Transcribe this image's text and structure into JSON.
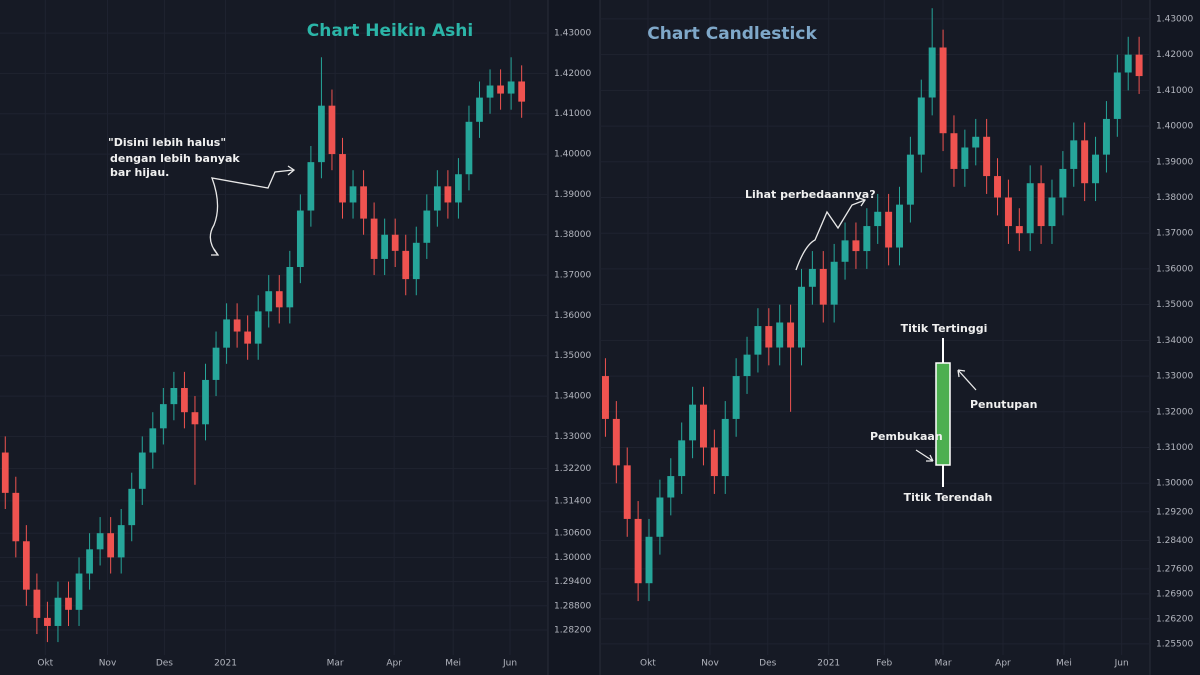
{
  "chart_data": [
    {
      "type": "candlestick",
      "title": "Chart Heikin Ashi",
      "annotations": [
        "\"Disini lebih halus\"",
        "dengan lebih banyak",
        "bar hijau."
      ],
      "up_color": "#26a69a",
      "down_color": "#ef5350",
      "grid": true,
      "xlim": [
        0,
        52
      ],
      "xticks": [
        {
          "value": 4.3,
          "label": "Okt"
        },
        {
          "value": 10.2,
          "label": "Nov"
        },
        {
          "value": 15.6,
          "label": "Des"
        },
        {
          "value": 21.4,
          "label": "2021"
        },
        {
          "value": 31.8,
          "label": "Mar"
        },
        {
          "value": 37.4,
          "label": "Apr"
        },
        {
          "value": 43,
          "label": "Mei"
        },
        {
          "value": 48.4,
          "label": "Jun"
        }
      ],
      "ylim": [
        1.2758,
        1.4382
      ],
      "yticks": [
        {
          "value": 1.43,
          "label": "1.43000"
        },
        {
          "value": 1.42,
          "label": "1.42000"
        },
        {
          "value": 1.41,
          "label": "1.41000"
        },
        {
          "value": 1.4,
          "label": "1.40000"
        },
        {
          "value": 1.39,
          "label": "1.39000"
        },
        {
          "value": 1.38,
          "label": "1.38000"
        },
        {
          "value": 1.37,
          "label": "1.37000"
        },
        {
          "value": 1.36,
          "label": "1.36000"
        },
        {
          "value": 1.35,
          "label": "1.35000"
        },
        {
          "value": 1.34,
          "label": "1.34000"
        },
        {
          "value": 1.33,
          "label": "1.33000"
        },
        {
          "value": 1.322,
          "label": "1.32200"
        },
        {
          "value": 1.314,
          "label": "1.31400"
        },
        {
          "value": 1.306,
          "label": "1.30600"
        },
        {
          "value": 1.3,
          "label": "1.30000"
        },
        {
          "value": 1.294,
          "label": "1.29400"
        },
        {
          "value": 1.288,
          "label": "1.28800"
        },
        {
          "value": 1.282,
          "label": "1.28200"
        }
      ],
      "open": [
        1.326,
        1.316,
        1.304,
        1.292,
        1.285,
        1.283,
        1.29,
        1.287,
        1.296,
        1.302,
        1.306,
        1.3,
        1.308,
        1.317,
        1.326,
        1.332,
        1.338,
        1.342,
        1.336,
        1.333,
        1.344,
        1.352,
        1.359,
        1.356,
        1.353,
        1.361,
        1.366,
        1.362,
        1.372,
        1.386,
        1.398,
        1.412,
        1.4,
        1.388,
        1.392,
        1.384,
        1.374,
        1.38,
        1.376,
        1.369,
        1.378,
        1.386,
        1.392,
        1.388,
        1.395,
        1.408,
        1.414,
        1.417,
        1.415,
        1.418
      ],
      "high": [
        1.33,
        1.32,
        1.308,
        1.296,
        1.289,
        1.294,
        1.294,
        1.3,
        1.306,
        1.31,
        1.31,
        1.312,
        1.321,
        1.33,
        1.336,
        1.342,
        1.346,
        1.346,
        1.34,
        1.348,
        1.356,
        1.363,
        1.363,
        1.36,
        1.365,
        1.37,
        1.37,
        1.376,
        1.39,
        1.402,
        1.424,
        1.416,
        1.404,
        1.396,
        1.396,
        1.388,
        1.384,
        1.384,
        1.38,
        1.382,
        1.39,
        1.396,
        1.396,
        1.399,
        1.412,
        1.418,
        1.421,
        1.421,
        1.424,
        1.422
      ],
      "low": [
        1.312,
        1.3,
        1.288,
        1.281,
        1.279,
        1.279,
        1.283,
        1.283,
        1.292,
        1.298,
        1.296,
        1.296,
        1.304,
        1.313,
        1.322,
        1.328,
        1.334,
        1.332,
        1.318,
        1.329,
        1.34,
        1.348,
        1.352,
        1.349,
        1.349,
        1.357,
        1.358,
        1.358,
        1.368,
        1.382,
        1.394,
        1.396,
        1.384,
        1.384,
        1.38,
        1.37,
        1.37,
        1.372,
        1.365,
        1.365,
        1.374,
        1.382,
        1.384,
        1.384,
        1.391,
        1.404,
        1.41,
        1.411,
        1.411,
        1.409
      ],
      "close": [
        1.316,
        1.304,
        1.292,
        1.285,
        1.283,
        1.29,
        1.287,
        1.296,
        1.302,
        1.306,
        1.3,
        1.308,
        1.317,
        1.326,
        1.332,
        1.338,
        1.342,
        1.336,
        1.333,
        1.344,
        1.352,
        1.359,
        1.356,
        1.353,
        1.361,
        1.366,
        1.362,
        1.372,
        1.386,
        1.398,
        1.412,
        1.4,
        1.388,
        1.392,
        1.384,
        1.374,
        1.38,
        1.376,
        1.369,
        1.378,
        1.386,
        1.392,
        1.388,
        1.395,
        1.408,
        1.414,
        1.417,
        1.415,
        1.418,
        1.413
      ]
    },
    {
      "type": "candlestick",
      "title": "Chart Candlestick",
      "annotations": [
        "Lihat perbedaannya?",
        "Titik Tertinggi",
        "Penutupan",
        "Pembukaan",
        "Titik Terendah"
      ],
      "up_color": "#26a69a",
      "down_color": "#ef5350",
      "grid": true,
      "xlim": [
        0,
        50.5
      ],
      "xticks": [
        {
          "value": 4.4,
          "label": "Okt"
        },
        {
          "value": 10.1,
          "label": "Nov"
        },
        {
          "value": 15.4,
          "label": "Des"
        },
        {
          "value": 21,
          "label": "2021"
        },
        {
          "value": 26.1,
          "label": "Feb"
        },
        {
          "value": 31.5,
          "label": "Mar"
        },
        {
          "value": 37,
          "label": "Apr"
        },
        {
          "value": 42.6,
          "label": "Mei"
        },
        {
          "value": 47.9,
          "label": "Jun"
        }
      ],
      "ylim": [
        1.2519,
        1.4353
      ],
      "yticks": [
        {
          "value": 1.43,
          "label": "1.43000"
        },
        {
          "value": 1.42,
          "label": "1.42000"
        },
        {
          "value": 1.41,
          "label": "1.41000"
        },
        {
          "value": 1.4,
          "label": "1.40000"
        },
        {
          "value": 1.39,
          "label": "1.39000"
        },
        {
          "value": 1.38,
          "label": "1.38000"
        },
        {
          "value": 1.37,
          "label": "1.37000"
        },
        {
          "value": 1.36,
          "label": "1.36000"
        },
        {
          "value": 1.35,
          "label": "1.35000"
        },
        {
          "value": 1.34,
          "label": "1.34000"
        },
        {
          "value": 1.33,
          "label": "1.33000"
        },
        {
          "value": 1.32,
          "label": "1.32000"
        },
        {
          "value": 1.31,
          "label": "1.31000"
        },
        {
          "value": 1.3,
          "label": "1.30000"
        },
        {
          "value": 1.292,
          "label": "1.29200"
        },
        {
          "value": 1.284,
          "label": "1.28400"
        },
        {
          "value": 1.276,
          "label": "1.27600"
        },
        {
          "value": 1.269,
          "label": "1.26900"
        },
        {
          "value": 1.262,
          "label": "1.26200"
        },
        {
          "value": 1.255,
          "label": "1.25500"
        }
      ],
      "open": [
        1.33,
        1.318,
        1.305,
        1.29,
        1.272,
        1.285,
        1.296,
        1.302,
        1.312,
        1.322,
        1.31,
        1.302,
        1.318,
        1.33,
        1.336,
        1.344,
        1.338,
        1.345,
        1.338,
        1.355,
        1.36,
        1.35,
        1.362,
        1.368,
        1.365,
        1.372,
        1.376,
        1.366,
        1.378,
        1.392,
        1.408,
        1.422,
        1.398,
        1.388,
        1.394,
        1.397,
        1.386,
        1.38,
        1.372,
        1.37,
        1.384,
        1.372,
        1.38,
        1.388,
        1.396,
        1.384,
        1.392,
        1.402,
        1.415,
        1.42
      ],
      "high": [
        1.335,
        1.323,
        1.31,
        1.295,
        1.29,
        1.301,
        1.307,
        1.317,
        1.327,
        1.327,
        1.315,
        1.323,
        1.335,
        1.341,
        1.349,
        1.349,
        1.35,
        1.35,
        1.36,
        1.365,
        1.365,
        1.367,
        1.373,
        1.373,
        1.377,
        1.381,
        1.381,
        1.383,
        1.397,
        1.413,
        1.433,
        1.427,
        1.403,
        1.399,
        1.402,
        1.402,
        1.391,
        1.385,
        1.377,
        1.389,
        1.389,
        1.385,
        1.393,
        1.401,
        1.401,
        1.397,
        1.407,
        1.42,
        1.425,
        1.425
      ],
      "low": [
        1.313,
        1.3,
        1.285,
        1.267,
        1.267,
        1.28,
        1.291,
        1.297,
        1.307,
        1.305,
        1.297,
        1.297,
        1.313,
        1.325,
        1.331,
        1.333,
        1.333,
        1.32,
        1.333,
        1.35,
        1.345,
        1.345,
        1.357,
        1.36,
        1.36,
        1.367,
        1.361,
        1.361,
        1.373,
        1.387,
        1.403,
        1.393,
        1.383,
        1.383,
        1.389,
        1.381,
        1.375,
        1.367,
        1.365,
        1.365,
        1.367,
        1.367,
        1.375,
        1.383,
        1.379,
        1.379,
        1.387,
        1.397,
        1.41,
        1.409
      ],
      "close": [
        1.318,
        1.305,
        1.29,
        1.272,
        1.285,
        1.296,
        1.302,
        1.312,
        1.322,
        1.31,
        1.302,
        1.318,
        1.33,
        1.336,
        1.344,
        1.338,
        1.345,
        1.338,
        1.355,
        1.36,
        1.35,
        1.362,
        1.368,
        1.365,
        1.372,
        1.376,
        1.366,
        1.378,
        1.392,
        1.408,
        1.422,
        1.398,
        1.388,
        1.394,
        1.397,
        1.386,
        1.38,
        1.372,
        1.37,
        1.384,
        1.372,
        1.38,
        1.388,
        1.396,
        1.384,
        1.392,
        1.402,
        1.415,
        1.42,
        1.414
      ]
    }
  ]
}
